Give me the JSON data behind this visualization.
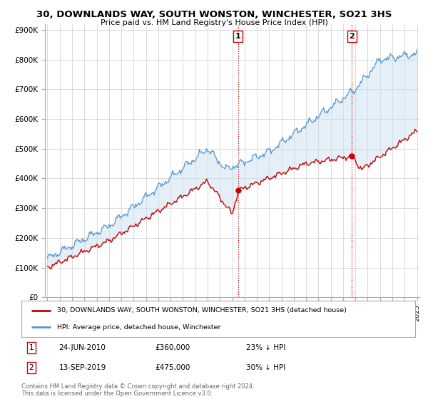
{
  "title": "30, DOWNLANDS WAY, SOUTH WONSTON, WINCHESTER, SO21 3HS",
  "subtitle": "Price paid vs. HM Land Registry's House Price Index (HPI)",
  "ylabel_ticks": [
    "£0",
    "£100K",
    "£200K",
    "£300K",
    "£400K",
    "£500K",
    "£600K",
    "£700K",
    "£800K",
    "£900K"
  ],
  "ytick_values": [
    0,
    100000,
    200000,
    300000,
    400000,
    500000,
    600000,
    700000,
    800000,
    900000
  ],
  "ylim": [
    0,
    920000
  ],
  "year_start": 1995,
  "year_end": 2025,
  "sale1_date": "24-JUN-2010",
  "sale1_price": 360000,
  "sale1_label": "23% ↓ HPI",
  "sale1_x": 2010.48,
  "sale2_date": "13-SEP-2019",
  "sale2_price": 475000,
  "sale2_label": "30% ↓ HPI",
  "sale2_x": 2019.71,
  "legend_label1": "30, DOWNLANDS WAY, SOUTH WONSTON, WINCHESTER, SO21 3HS (detached house)",
  "legend_label2": "HPI: Average price, detached house, Winchester",
  "footnote": "Contains HM Land Registry data © Crown copyright and database right 2024.\nThis data is licensed under the Open Government Licence v3.0.",
  "color_red": "#cc0000",
  "color_blue": "#5599cc",
  "color_fill": "#cce0f0",
  "background_color": "#ffffff",
  "grid_color": "#cccccc"
}
